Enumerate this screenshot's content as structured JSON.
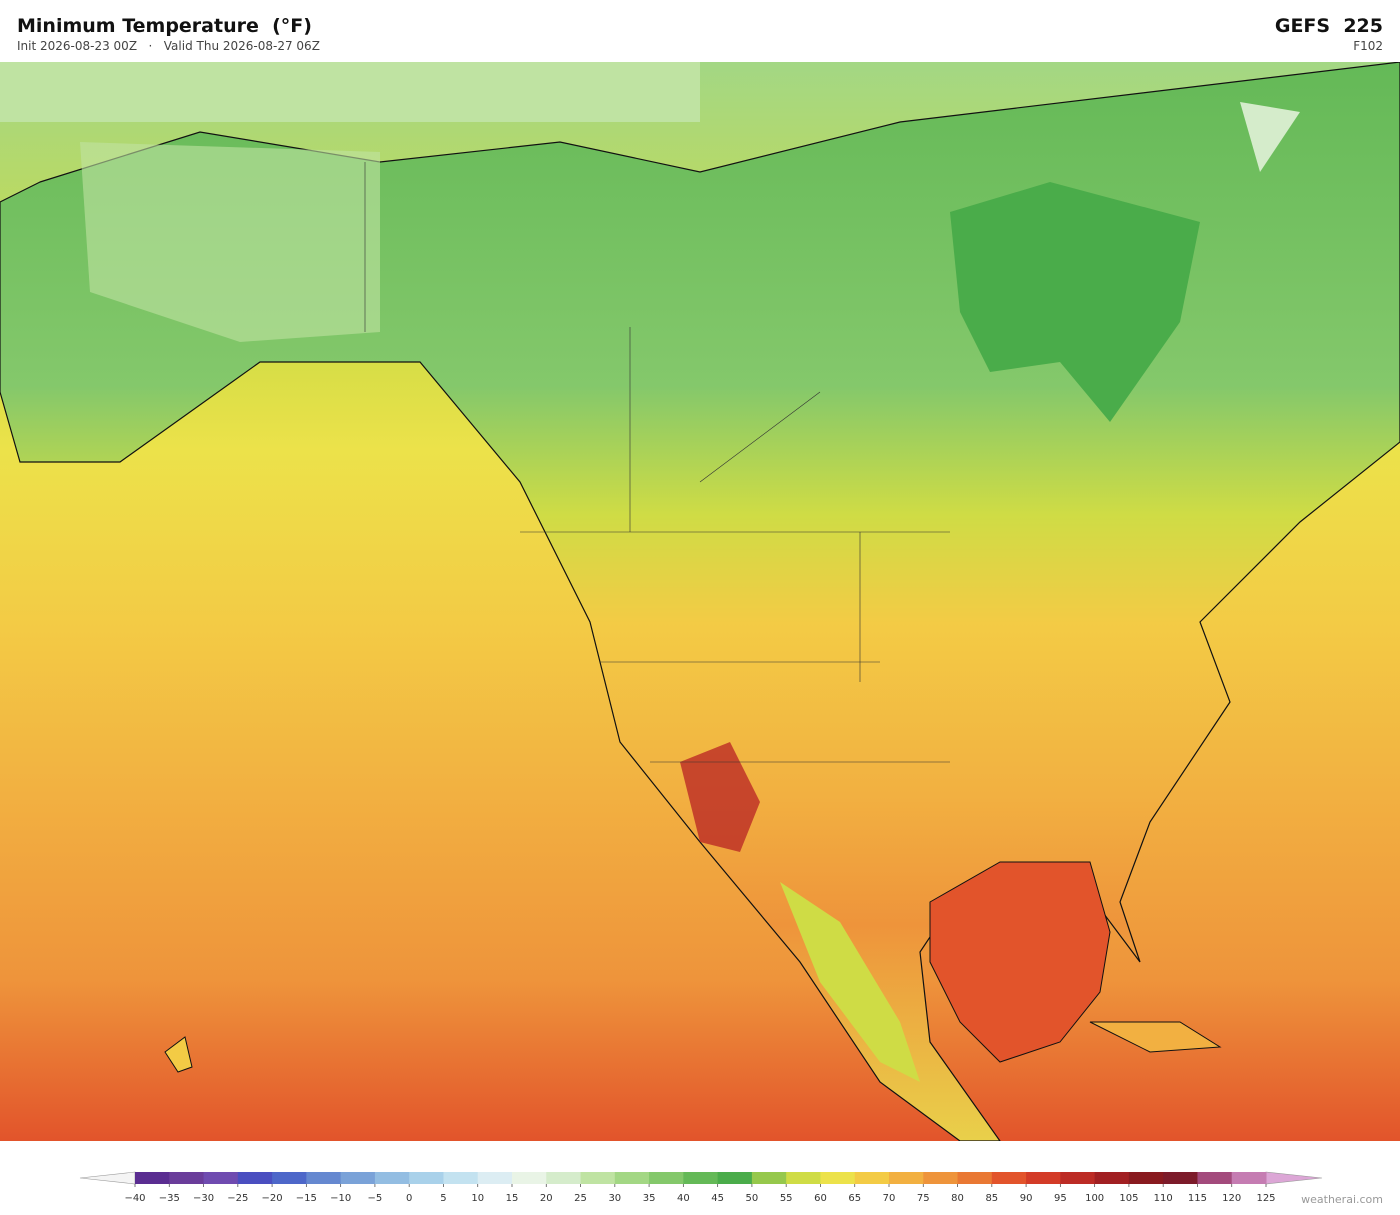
{
  "header": {
    "title": "Minimum Temperature  (°F)",
    "init": "Init 2026-08-23 00Z",
    "separator": "·",
    "valid": "Valid Thu 2026-08-27 06Z",
    "model": "GEFS",
    "member": "225",
    "forecast_hour": "F102"
  },
  "colorbar": {
    "ticks": [
      {
        "value": -40,
        "label": "−40"
      },
      {
        "value": -35,
        "label": "−35"
      },
      {
        "value": -30,
        "label": "−30"
      },
      {
        "value": -25,
        "label": "−25"
      },
      {
        "value": -20,
        "label": "−20"
      },
      {
        "value": -15,
        "label": "−15"
      },
      {
        "value": -10,
        "label": "−10"
      },
      {
        "value": -5,
        "label": "−5"
      },
      0,
      5,
      10,
      15,
      20,
      25,
      30,
      35,
      40,
      45,
      50,
      55,
      60,
      65,
      70,
      75,
      80,
      85,
      90,
      95,
      100,
      105,
      110,
      115,
      120,
      125
    ],
    "colors": [
      "#5a2d91",
      "#6a3d9a",
      "#6f4bb0",
      "#4a4ec0",
      "#4d67c9",
      "#6588d0",
      "#7aa2d8",
      "#93bde2",
      "#a9d1ea",
      "#c3e2f0",
      "#dcedf3",
      "#e9f4e6",
      "#d5eccb",
      "#bfe3a2",
      "#a3d784",
      "#84c86b",
      "#64b957",
      "#4aac4a",
      "#96c84c",
      "#cfdc45",
      "#ece24a",
      "#f3cb45",
      "#f2b041",
      "#ee943b",
      "#e97833",
      "#e2542b",
      "#d33b27",
      "#bc2b25",
      "#a11f22",
      "#891a1f",
      "#7c1b2a",
      "#a34a7c",
      "#c57cb2"
    ],
    "under_color": "#f4f4f4",
    "over_color": "#dca6d6"
  },
  "credit": "weatherai.com"
}
